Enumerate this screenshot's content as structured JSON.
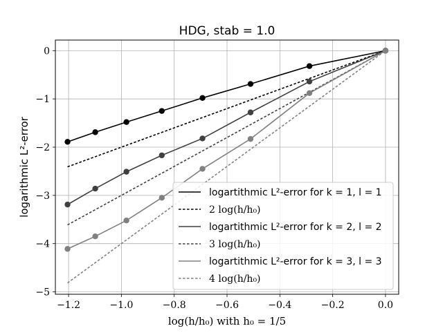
{
  "chart_data": {
    "type": "line",
    "title": "HDG, stab = 1.0",
    "xlabel": "log(h/h₀) with h₀ = 1/5",
    "ylabel": "logarithmic L²-error",
    "xlim": [
      -1.25,
      0.05
    ],
    "ylim": [
      -5.05,
      0.22
    ],
    "grid": true,
    "legend_position": "bottom-right",
    "x_ticks": [
      -1.2,
      -1.0,
      -0.8,
      -0.6,
      -0.4,
      -0.2,
      0.0
    ],
    "x_tick_labels": [
      "−1.2",
      "−1.0",
      "−0.8",
      "−0.6",
      "−0.4",
      "−0.2",
      "0.0"
    ],
    "y_ticks": [
      0,
      -1,
      -2,
      -3,
      -4,
      -5
    ],
    "y_tick_labels": [
      "0",
      "−1",
      "−2",
      "−3",
      "−4",
      "−5"
    ],
    "x": [
      -1.204,
      -1.099,
      -0.981,
      -0.847,
      -0.693,
      -0.511,
      -0.288,
      0.0
    ],
    "series": [
      {
        "name": "logartithmic L²-error for k = 1, l = 1",
        "style": "solid",
        "markers": true,
        "color": "#000000",
        "values": [
          -1.89,
          -1.69,
          -1.48,
          -1.25,
          -0.98,
          -0.69,
          -0.32,
          0.0
        ]
      },
      {
        "name": "2 log(h/h₀)",
        "style": "dashed",
        "markers": false,
        "color": "#000000",
        "values": [
          -2.408,
          -2.198,
          -1.962,
          -1.694,
          -1.386,
          -1.022,
          -0.576,
          0.0
        ]
      },
      {
        "name": "logartithmic L²-error for k = 2, l = 2",
        "style": "solid",
        "markers": true,
        "color": "#404040",
        "values": [
          -3.19,
          -2.86,
          -2.51,
          -2.17,
          -1.82,
          -1.28,
          -0.64,
          0.0
        ]
      },
      {
        "name": "3 log(h/h₀)",
        "style": "dashed",
        "markers": false,
        "color": "#404040",
        "values": [
          -3.612,
          -3.297,
          -2.943,
          -2.541,
          -2.079,
          -1.533,
          -0.864,
          0.0
        ]
      },
      {
        "name": "logartithmic L²-error for k = 3, l = 3",
        "style": "solid",
        "markers": true,
        "color": "#808080",
        "values": [
          -4.11,
          -3.85,
          -3.52,
          -3.05,
          -2.45,
          -1.83,
          -0.88,
          0.0
        ]
      },
      {
        "name": "4 log(h/h₀)",
        "style": "dashed",
        "markers": false,
        "color": "#808080",
        "values": [
          -4.816,
          -4.396,
          -3.924,
          -3.388,
          -2.772,
          -2.044,
          -1.152,
          0.0
        ]
      }
    ]
  }
}
